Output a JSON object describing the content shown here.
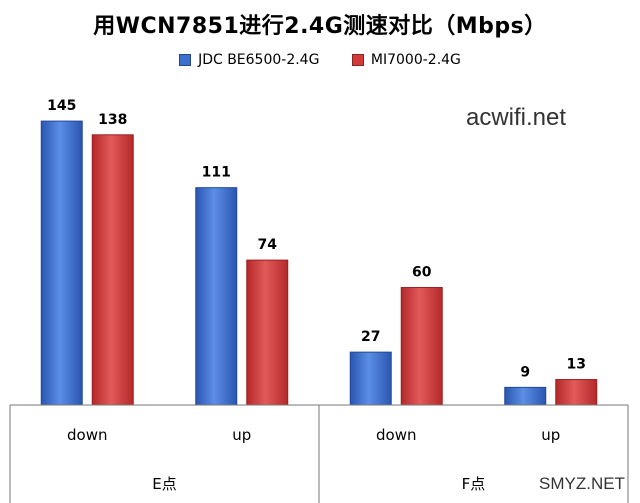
{
  "chart_data": {
    "type": "bar",
    "title": "用WCN7851进行2.4G测速对比（Mbps）",
    "groups": [
      {
        "label": "E点",
        "categories": [
          "down",
          "up"
        ]
      },
      {
        "label": "F点",
        "categories": [
          "down",
          "up"
        ]
      }
    ],
    "categories": [
      "down",
      "up",
      "down",
      "up"
    ],
    "series": [
      {
        "name": "JDC BE6500-2.4G",
        "color": "#3d6fcf",
        "values": [
          145,
          111,
          27,
          9
        ]
      },
      {
        "name": "MI7000-2.4G",
        "color": "#d23a3a",
        "values": [
          138,
          74,
          60,
          13
        ]
      }
    ],
    "ylim": [
      0,
      155
    ],
    "grid": false,
    "legend_position": "top"
  },
  "watermarks": {
    "top": "acwifi.net",
    "bottom": "SMYZ.NET"
  }
}
